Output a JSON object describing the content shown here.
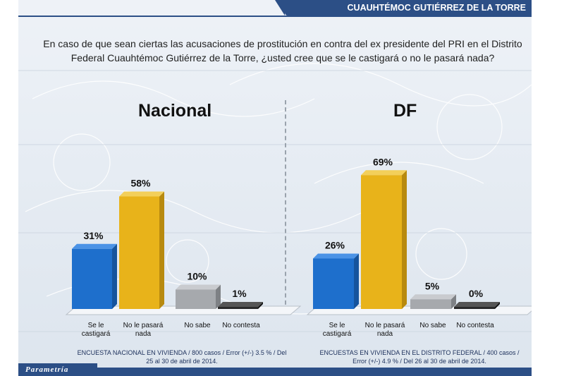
{
  "header": {
    "title": "CUAUHTÉMOC GUTIÉRREZ DE LA TORRE"
  },
  "question": "En caso de que sean ciertas las acusaciones de prostitución en contra del ex presidente del PRI en el Distrito Federal Cuauhtémoc Gutiérrez de la Torre, ¿usted cree que se le castigará o no le pasará nada?",
  "colors": {
    "blue": "#1e6fcc",
    "gold": "#e8b31a",
    "gray": "#a6a9ad",
    "black": "#2a2a2a",
    "header": "#2c4f86"
  },
  "chart_data": [
    {
      "type": "bar",
      "title": "Nacional",
      "categories": [
        "Se le castigará",
        "No le pasará nada",
        "No sabe",
        "No contesta"
      ],
      "values": [
        31,
        58,
        10,
        1
      ],
      "labels": [
        "31%",
        "58%",
        "10%",
        "1%"
      ],
      "footnote": "ENCUESTA NACIONAL EN VIVIENDA / 800 casos / Error (+/-) 3.5 % / Del 25 al 30 de abril de 2014."
    },
    {
      "type": "bar",
      "title": "DF",
      "categories": [
        "Se le castigará",
        "No le pasará nada",
        "No sabe",
        "No contesta"
      ],
      "values": [
        26,
        69,
        5,
        0
      ],
      "labels": [
        "26%",
        "69%",
        "5%",
        "0%"
      ],
      "footnote": "ENCUESTAS EN VIVIENDA EN EL DISTRITO FEDERAL / 400 casos / Error (+/-) 4.9 % / Del 26 al 30 de abril de 2014."
    }
  ],
  "brand": "Parametría"
}
